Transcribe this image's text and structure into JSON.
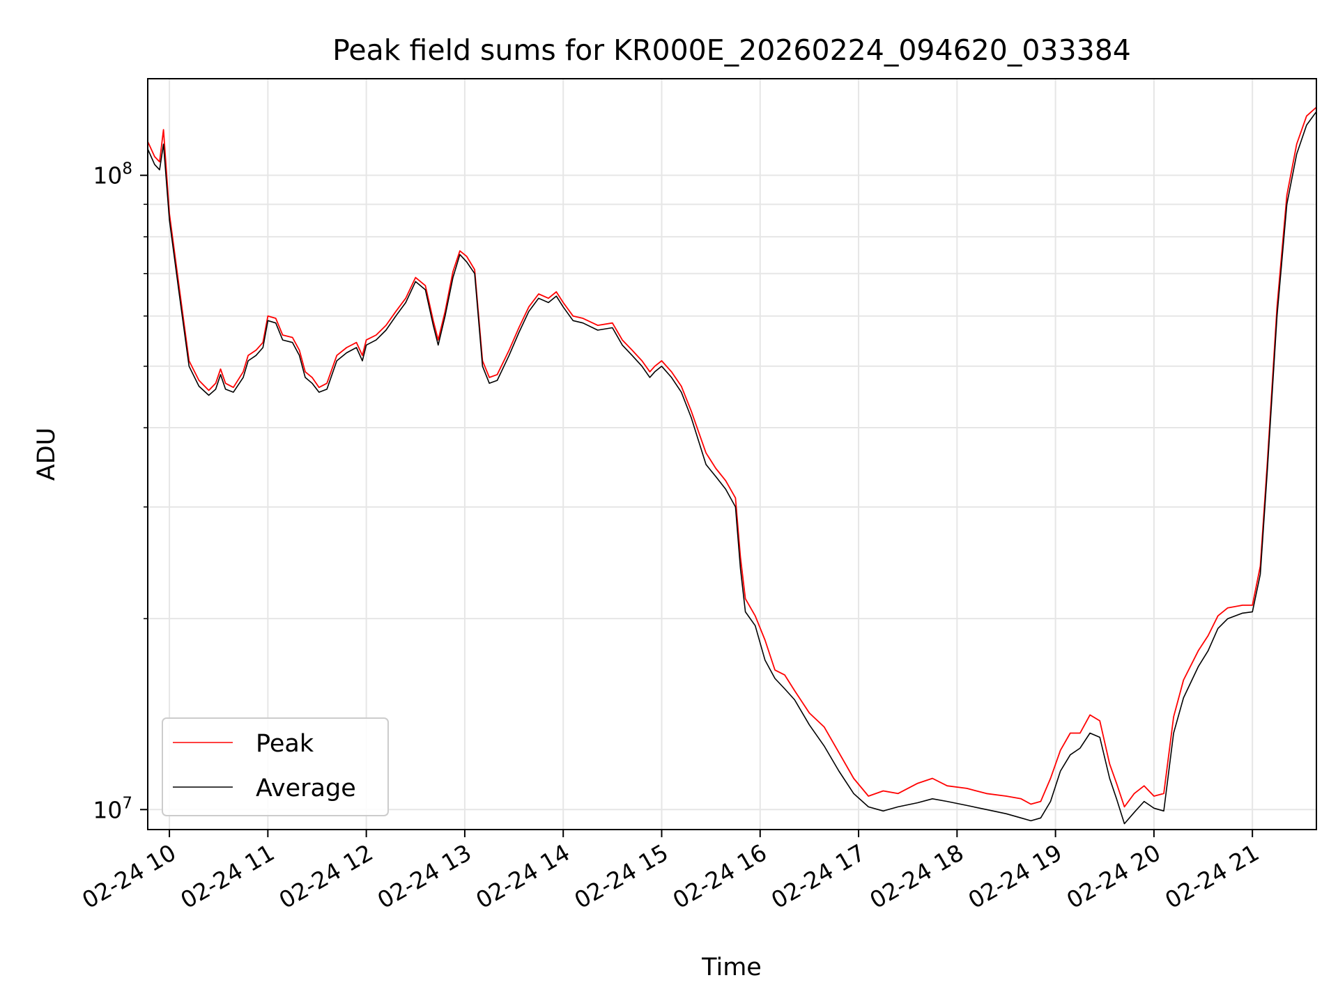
{
  "chart_data": {
    "type": "line",
    "title": "Peak field sums for KR000E_20260224_094620_033384",
    "xlabel": "Time",
    "ylabel": "ADU",
    "y_scale": "log",
    "xlim": [
      9.78,
      21.65
    ],
    "ylim": [
      9300000,
      142000000
    ],
    "grid": true,
    "legend_position": "lower-left",
    "x_ticks": [
      {
        "value": 10,
        "label": "02-24 10"
      },
      {
        "value": 11,
        "label": "02-24 11"
      },
      {
        "value": 12,
        "label": "02-24 12"
      },
      {
        "value": 13,
        "label": "02-24 13"
      },
      {
        "value": 14,
        "label": "02-24 14"
      },
      {
        "value": 15,
        "label": "02-24 15"
      },
      {
        "value": 16,
        "label": "02-24 16"
      },
      {
        "value": 17,
        "label": "02-24 17"
      },
      {
        "value": 18,
        "label": "02-24 18"
      },
      {
        "value": 19,
        "label": "02-24 19"
      },
      {
        "value": 20,
        "label": "02-24 20"
      },
      {
        "value": 21,
        "label": "02-24 21"
      }
    ],
    "y_ticks": [
      {
        "value": 10000000,
        "base": "10",
        "exp": "7"
      },
      {
        "value": 100000000,
        "base": "10",
        "exp": "8"
      }
    ],
    "y_minor_ticks": [
      20000000,
      30000000,
      40000000,
      50000000,
      60000000,
      70000000,
      80000000,
      90000000
    ],
    "x_unit": "hour of day (2026-02-24)",
    "series": [
      {
        "name": "Average",
        "color": "#000000",
        "points": [
          [
            9.78,
            110000000
          ],
          [
            9.85,
            104000000
          ],
          [
            9.9,
            102000000
          ],
          [
            9.94,
            112000000
          ],
          [
            10.0,
            85000000
          ],
          [
            10.1,
            65000000
          ],
          [
            10.2,
            50000000
          ],
          [
            10.3,
            46500000
          ],
          [
            10.4,
            45000000
          ],
          [
            10.47,
            46000000
          ],
          [
            10.52,
            48500000
          ],
          [
            10.57,
            46000000
          ],
          [
            10.65,
            45500000
          ],
          [
            10.75,
            48000000
          ],
          [
            10.8,
            51000000
          ],
          [
            10.88,
            52000000
          ],
          [
            10.95,
            53500000
          ],
          [
            11.0,
            59000000
          ],
          [
            11.08,
            58500000
          ],
          [
            11.15,
            55000000
          ],
          [
            11.25,
            54500000
          ],
          [
            11.32,
            52000000
          ],
          [
            11.38,
            48000000
          ],
          [
            11.45,
            47000000
          ],
          [
            11.52,
            45500000
          ],
          [
            11.6,
            46000000
          ],
          [
            11.7,
            51000000
          ],
          [
            11.8,
            52500000
          ],
          [
            11.9,
            53500000
          ],
          [
            11.96,
            51000000
          ],
          [
            12.0,
            54000000
          ],
          [
            12.1,
            55000000
          ],
          [
            12.2,
            57000000
          ],
          [
            12.3,
            60000000
          ],
          [
            12.4,
            63000000
          ],
          [
            12.5,
            68000000
          ],
          [
            12.6,
            66000000
          ],
          [
            12.68,
            58000000
          ],
          [
            12.73,
            54000000
          ],
          [
            12.8,
            60000000
          ],
          [
            12.88,
            69000000
          ],
          [
            12.95,
            75000000
          ],
          [
            13.02,
            73000000
          ],
          [
            13.1,
            70000000
          ],
          [
            13.18,
            50000000
          ],
          [
            13.25,
            47000000
          ],
          [
            13.33,
            47500000
          ],
          [
            13.45,
            52000000
          ],
          [
            13.55,
            56500000
          ],
          [
            13.65,
            61000000
          ],
          [
            13.75,
            64000000
          ],
          [
            13.85,
            63000000
          ],
          [
            13.93,
            64500000
          ],
          [
            14.0,
            62000000
          ],
          [
            14.1,
            59000000
          ],
          [
            14.2,
            58500000
          ],
          [
            14.35,
            57000000
          ],
          [
            14.5,
            57500000
          ],
          [
            14.6,
            54000000
          ],
          [
            14.7,
            52000000
          ],
          [
            14.8,
            50000000
          ],
          [
            14.88,
            48000000
          ],
          [
            14.93,
            49000000
          ],
          [
            15.0,
            50000000
          ],
          [
            15.1,
            48000000
          ],
          [
            15.2,
            45500000
          ],
          [
            15.3,
            41500000
          ],
          [
            15.45,
            35000000
          ],
          [
            15.55,
            33500000
          ],
          [
            15.65,
            32000000
          ],
          [
            15.75,
            30000000
          ],
          [
            15.8,
            24000000
          ],
          [
            15.85,
            20500000
          ],
          [
            15.95,
            19500000
          ],
          [
            16.05,
            17200000
          ],
          [
            16.15,
            16100000
          ],
          [
            16.25,
            15500000
          ],
          [
            16.35,
            14900000
          ],
          [
            16.5,
            13600000
          ],
          [
            16.65,
            12600000
          ],
          [
            16.8,
            11500000
          ],
          [
            16.95,
            10600000
          ],
          [
            17.1,
            10100000
          ],
          [
            17.25,
            9950000
          ],
          [
            17.4,
            10100000
          ],
          [
            17.6,
            10250000
          ],
          [
            17.75,
            10400000
          ],
          [
            17.9,
            10300000
          ],
          [
            18.1,
            10150000
          ],
          [
            18.3,
            10000000
          ],
          [
            18.5,
            9850000
          ],
          [
            18.65,
            9700000
          ],
          [
            18.75,
            9600000
          ],
          [
            18.85,
            9700000
          ],
          [
            18.95,
            10300000
          ],
          [
            19.05,
            11500000
          ],
          [
            19.15,
            12200000
          ],
          [
            19.25,
            12500000
          ],
          [
            19.35,
            13200000
          ],
          [
            19.45,
            13000000
          ],
          [
            19.55,
            11200000
          ],
          [
            19.62,
            10400000
          ],
          [
            19.7,
            9500000
          ],
          [
            19.8,
            9900000
          ],
          [
            19.9,
            10300000
          ],
          [
            20.0,
            10050000
          ],
          [
            20.1,
            9950000
          ],
          [
            20.2,
            13200000
          ],
          [
            20.3,
            15000000
          ],
          [
            20.45,
            16800000
          ],
          [
            20.55,
            17800000
          ],
          [
            20.65,
            19300000
          ],
          [
            20.75,
            20000000
          ],
          [
            20.9,
            20400000
          ],
          [
            21.0,
            20500000
          ],
          [
            21.08,
            23500000
          ],
          [
            21.15,
            34000000
          ],
          [
            21.25,
            60000000
          ],
          [
            21.35,
            90000000
          ],
          [
            21.45,
            108000000
          ],
          [
            21.55,
            120000000
          ],
          [
            21.65,
            126000000
          ]
        ]
      },
      {
        "name": "Peak",
        "color": "#ff0000",
        "points": [
          [
            9.78,
            113000000
          ],
          [
            9.85,
            107000000
          ],
          [
            9.9,
            105000000
          ],
          [
            9.94,
            118000000
          ],
          [
            10.0,
            87000000
          ],
          [
            10.1,
            66500000
          ],
          [
            10.2,
            51000000
          ],
          [
            10.3,
            47500000
          ],
          [
            10.4,
            45800000
          ],
          [
            10.47,
            47000000
          ],
          [
            10.52,
            49500000
          ],
          [
            10.57,
            47000000
          ],
          [
            10.65,
            46300000
          ],
          [
            10.75,
            49000000
          ],
          [
            10.8,
            52000000
          ],
          [
            10.88,
            53000000
          ],
          [
            10.95,
            54500000
          ],
          [
            11.0,
            60000000
          ],
          [
            11.08,
            59500000
          ],
          [
            11.15,
            56000000
          ],
          [
            11.25,
            55500000
          ],
          [
            11.32,
            53000000
          ],
          [
            11.38,
            49000000
          ],
          [
            11.45,
            48000000
          ],
          [
            11.52,
            46300000
          ],
          [
            11.6,
            47000000
          ],
          [
            11.7,
            52000000
          ],
          [
            11.8,
            53500000
          ],
          [
            11.9,
            54500000
          ],
          [
            11.96,
            52000000
          ],
          [
            12.0,
            55000000
          ],
          [
            12.1,
            56000000
          ],
          [
            12.2,
            58000000
          ],
          [
            12.3,
            61000000
          ],
          [
            12.4,
            64000000
          ],
          [
            12.5,
            69000000
          ],
          [
            12.6,
            67000000
          ],
          [
            12.68,
            59000000
          ],
          [
            12.73,
            55000000
          ],
          [
            12.8,
            61000000
          ],
          [
            12.88,
            70500000
          ],
          [
            12.95,
            76000000
          ],
          [
            13.02,
            74500000
          ],
          [
            13.1,
            71000000
          ],
          [
            13.18,
            51000000
          ],
          [
            13.25,
            48000000
          ],
          [
            13.33,
            48500000
          ],
          [
            13.45,
            53000000
          ],
          [
            13.55,
            57500000
          ],
          [
            13.65,
            62000000
          ],
          [
            13.75,
            65000000
          ],
          [
            13.85,
            64000000
          ],
          [
            13.93,
            65500000
          ],
          [
            14.0,
            63000000
          ],
          [
            14.1,
            60000000
          ],
          [
            14.2,
            59500000
          ],
          [
            14.35,
            58000000
          ],
          [
            14.5,
            58500000
          ],
          [
            14.6,
            55000000
          ],
          [
            14.7,
            53000000
          ],
          [
            14.8,
            51000000
          ],
          [
            14.88,
            49000000
          ],
          [
            14.93,
            50000000
          ],
          [
            15.0,
            51000000
          ],
          [
            15.1,
            49000000
          ],
          [
            15.2,
            46500000
          ],
          [
            15.3,
            42500000
          ],
          [
            15.45,
            36500000
          ],
          [
            15.55,
            34500000
          ],
          [
            15.65,
            33000000
          ],
          [
            15.75,
            31000000
          ],
          [
            15.8,
            25000000
          ],
          [
            15.85,
            21500000
          ],
          [
            15.95,
            20200000
          ],
          [
            16.05,
            18500000
          ],
          [
            16.15,
            16600000
          ],
          [
            16.25,
            16300000
          ],
          [
            16.35,
            15400000
          ],
          [
            16.5,
            14200000
          ],
          [
            16.65,
            13500000
          ],
          [
            16.8,
            12300000
          ],
          [
            16.95,
            11200000
          ],
          [
            17.1,
            10500000
          ],
          [
            17.25,
            10700000
          ],
          [
            17.4,
            10600000
          ],
          [
            17.6,
            11000000
          ],
          [
            17.75,
            11200000
          ],
          [
            17.9,
            10900000
          ],
          [
            18.1,
            10800000
          ],
          [
            18.3,
            10600000
          ],
          [
            18.5,
            10500000
          ],
          [
            18.65,
            10400000
          ],
          [
            18.75,
            10200000
          ],
          [
            18.85,
            10300000
          ],
          [
            18.95,
            11200000
          ],
          [
            19.05,
            12400000
          ],
          [
            19.15,
            13200000
          ],
          [
            19.25,
            13200000
          ],
          [
            19.35,
            14100000
          ],
          [
            19.45,
            13800000
          ],
          [
            19.55,
            11800000
          ],
          [
            19.62,
            11000000
          ],
          [
            19.7,
            10100000
          ],
          [
            19.8,
            10600000
          ],
          [
            19.9,
            10900000
          ],
          [
            20.0,
            10500000
          ],
          [
            20.1,
            10600000
          ],
          [
            20.2,
            14000000
          ],
          [
            20.3,
            16000000
          ],
          [
            20.45,
            17800000
          ],
          [
            20.55,
            18800000
          ],
          [
            20.65,
            20200000
          ],
          [
            20.75,
            20800000
          ],
          [
            20.9,
            21000000
          ],
          [
            21.0,
            21000000
          ],
          [
            21.08,
            24200000
          ],
          [
            21.15,
            35000000
          ],
          [
            21.25,
            62000000
          ],
          [
            21.35,
            93000000
          ],
          [
            21.45,
            112000000
          ],
          [
            21.55,
            124000000
          ],
          [
            21.65,
            128000000
          ]
        ]
      }
    ]
  }
}
